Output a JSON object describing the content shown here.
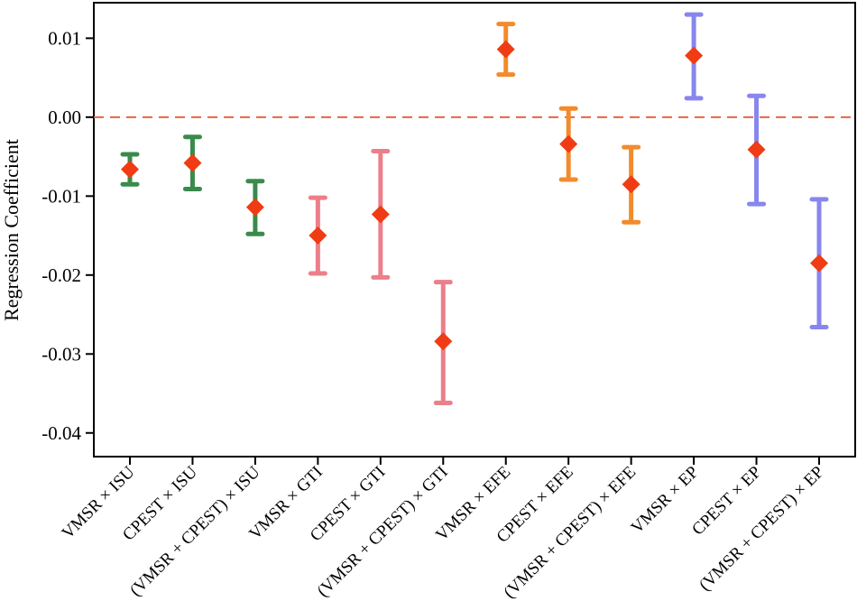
{
  "chart_data": {
    "type": "errorbar",
    "title": "",
    "xlabel": "",
    "ylabel": "Regression Coefficient",
    "ylim": [
      -0.043,
      0.0145
    ],
    "yticks": [
      0.01,
      0.0,
      -0.01,
      -0.02,
      -0.03,
      -0.04
    ],
    "ytick_labels": [
      "0.01",
      "0.00",
      "-0.01",
      "-0.02",
      "-0.03",
      "-0.04"
    ],
    "reference_line": {
      "y": 0.0,
      "style": "dashed",
      "color": "#e8643c"
    },
    "marker_color": "#f03c14",
    "categories": [
      "VMSR × ISU",
      "CPEST × ISU",
      "(VMSR + CPEST) × ISU",
      "VMSR × GTI",
      "CPEST × GTI",
      "(VMSR + CPEST) × GTI",
      "VMSR × EFE",
      "CPEST × EFE",
      "(VMSR + CPEST) × EFE",
      "VMSR × EP",
      "CPEST × EP",
      "(VMSR + CPEST) × EP"
    ],
    "estimates": [
      -0.0066,
      -0.0058,
      -0.0114,
      -0.015,
      -0.0123,
      -0.0284,
      0.0086,
      -0.0034,
      -0.0085,
      0.0078,
      -0.0041,
      -0.0185
    ],
    "lower": [
      -0.0085,
      -0.0091,
      -0.0148,
      -0.0198,
      -0.0203,
      -0.0362,
      0.0054,
      -0.0079,
      -0.0133,
      0.0024,
      -0.011,
      -0.0266
    ],
    "upper": [
      -0.0047,
      -0.0025,
      -0.0081,
      -0.0102,
      -0.0043,
      -0.0209,
      0.0118,
      0.0011,
      -0.0038,
      0.013,
      0.0027,
      -0.0104
    ],
    "group_colors": [
      "#3a8a4c",
      "#3a8a4c",
      "#3a8a4c",
      "#ec7f8a",
      "#ec7f8a",
      "#ec7f8a",
      "#f28b2c",
      "#f28b2c",
      "#f28b2c",
      "#8886ee",
      "#8886ee",
      "#8886ee"
    ]
  }
}
